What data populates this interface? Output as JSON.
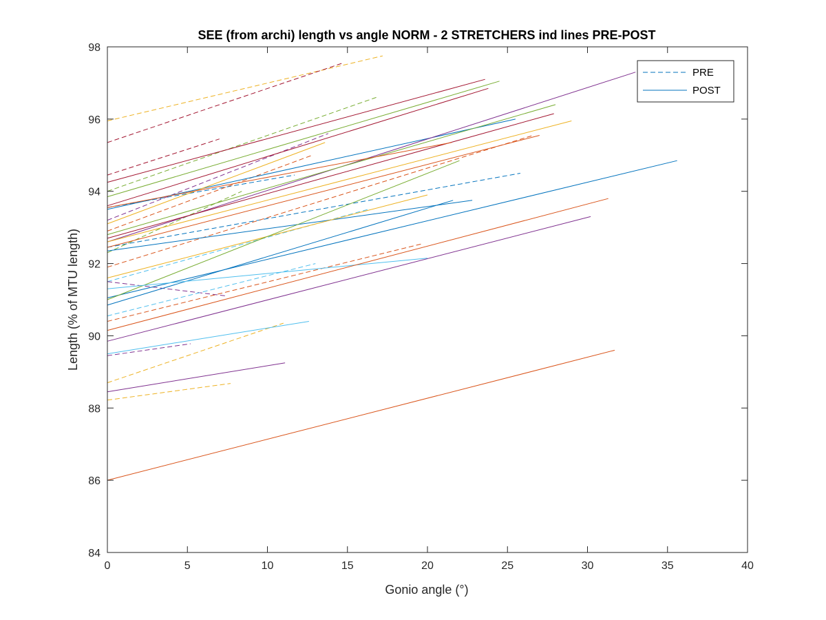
{
  "chart_data": {
    "type": "line",
    "title": "SEE (from archi) length vs angle NORM - 2 STRETCHERS ind lines PRE-POST",
    "xlabel": "Gonio angle (°)",
    "ylabel": "Length (% of MTU length)",
    "xlim": [
      0,
      40
    ],
    "ylim": [
      84,
      98
    ],
    "xticks": [
      "0",
      "5",
      "10",
      "15",
      "20",
      "25",
      "30",
      "35",
      "40"
    ],
    "yticks": [
      "84",
      "86",
      "88",
      "90",
      "92",
      "94",
      "96",
      "98"
    ],
    "grid": false,
    "legend": {
      "placement": "top-right",
      "entries": [
        {
          "label": "PRE",
          "style": "dashed",
          "color": "#0072BD"
        },
        {
          "label": "POST",
          "style": "solid",
          "color": "#0072BD"
        }
      ]
    },
    "series": [
      {
        "condition": "PRE",
        "color": "#EDB120",
        "x": [
          0,
          17.2
        ],
        "y": [
          95.95,
          97.75
        ]
      },
      {
        "condition": "PRE",
        "color": "#A2142F",
        "x": [
          0,
          14.7
        ],
        "y": [
          95.35,
          97.55
        ]
      },
      {
        "condition": "PRE",
        "color": "#77AC30",
        "x": [
          0,
          16.8
        ],
        "y": [
          94.0,
          96.6
        ]
      },
      {
        "condition": "PRE",
        "color": "#A2142F",
        "x": [
          0,
          7.0
        ],
        "y": [
          94.45,
          95.45
        ]
      },
      {
        "condition": "PRE",
        "color": "#0072BD",
        "x": [
          0,
          11.7
        ],
        "y": [
          93.55,
          94.45
        ]
      },
      {
        "condition": "PRE",
        "color": "#7E2F8E",
        "x": [
          0,
          13.8
        ],
        "y": [
          93.2,
          95.6
        ]
      },
      {
        "condition": "PRE",
        "color": "#D95319",
        "x": [
          0,
          12.8
        ],
        "y": [
          92.9,
          95.0
        ]
      },
      {
        "condition": "PRE",
        "color": "#0072BD",
        "x": [
          0,
          25.8
        ],
        "y": [
          92.45,
          94.5
        ]
      },
      {
        "condition": "PRE",
        "color": "#4DBEEE",
        "x": [
          0,
          16.3
        ],
        "y": [
          91.5,
          93.5
        ]
      },
      {
        "condition": "PRE",
        "color": "#77AC30",
        "x": [
          0,
          8.4
        ],
        "y": [
          92.3,
          94.0
        ]
      },
      {
        "condition": "PRE",
        "color": "#D95319",
        "x": [
          0,
          26.6
        ],
        "y": [
          91.9,
          95.55
        ]
      },
      {
        "condition": "PRE",
        "color": "#7E2F8E",
        "x": [
          0,
          7.5
        ],
        "y": [
          91.5,
          91.1
        ]
      },
      {
        "condition": "PRE",
        "color": "#4DBEEE",
        "x": [
          0,
          13.0
        ],
        "y": [
          90.55,
          92.0
        ]
      },
      {
        "condition": "PRE",
        "color": "#D95319",
        "x": [
          0,
          19.7
        ],
        "y": [
          90.4,
          92.55
        ]
      },
      {
        "condition": "PRE",
        "color": "#7E2F8E",
        "x": [
          0,
          5.2
        ],
        "y": [
          89.45,
          89.78
        ]
      },
      {
        "condition": "PRE",
        "color": "#EDB120",
        "x": [
          0,
          11.0
        ],
        "y": [
          88.7,
          90.35
        ]
      },
      {
        "condition": "PRE",
        "color": "#EDB120",
        "x": [
          0,
          7.7
        ],
        "y": [
          88.22,
          88.68
        ]
      },
      {
        "condition": "POST",
        "color": "#A2142F",
        "x": [
          0,
          23.6
        ],
        "y": [
          94.25,
          97.1
        ]
      },
      {
        "condition": "POST",
        "color": "#77AC30",
        "x": [
          0,
          24.5
        ],
        "y": [
          93.85,
          97.05
        ]
      },
      {
        "condition": "POST",
        "color": "#A2142F",
        "x": [
          0,
          23.8
        ],
        "y": [
          93.6,
          96.85
        ]
      },
      {
        "condition": "POST",
        "color": "#0072BD",
        "x": [
          0,
          25.5
        ],
        "y": [
          93.5,
          96.0
        ]
      },
      {
        "condition": "POST",
        "color": "#7E2F8E",
        "x": [
          0,
          33.0
        ],
        "y": [
          92.6,
          97.3
        ]
      },
      {
        "condition": "POST",
        "color": "#77AC30",
        "x": [
          0,
          28.0
        ],
        "y": [
          92.8,
          96.4
        ]
      },
      {
        "condition": "POST",
        "color": "#A2142F",
        "x": [
          0,
          27.9
        ],
        "y": [
          92.7,
          96.15
        ]
      },
      {
        "condition": "POST",
        "color": "#D95319",
        "x": [
          0,
          27.0
        ],
        "y": [
          92.45,
          95.55
        ]
      },
      {
        "condition": "POST",
        "color": "#EDB120",
        "x": [
          0,
          29.0
        ],
        "y": [
          92.6,
          95.95
        ]
      },
      {
        "condition": "POST",
        "color": "#EDB120",
        "x": [
          0,
          13.6
        ],
        "y": [
          93.1,
          95.35
        ]
      },
      {
        "condition": "POST",
        "color": "#D95319",
        "x": [
          0,
          21.5
        ],
        "y": [
          93.55,
          95.35
        ]
      },
      {
        "condition": "POST",
        "color": "#0072BD",
        "x": [
          0,
          22.8
        ],
        "y": [
          92.35,
          93.75
        ]
      },
      {
        "condition": "POST",
        "color": "#EDB120",
        "x": [
          0,
          20.0
        ],
        "y": [
          91.6,
          93.9
        ]
      },
      {
        "condition": "POST",
        "color": "#0072BD",
        "x": [
          0,
          35.6
        ],
        "y": [
          91.05,
          94.85
        ]
      },
      {
        "condition": "POST",
        "color": "#77AC30",
        "x": [
          0,
          22.0
        ],
        "y": [
          91.0,
          94.85
        ]
      },
      {
        "condition": "POST",
        "color": "#0072BD",
        "x": [
          0,
          21.6
        ],
        "y": [
          90.85,
          93.75
        ]
      },
      {
        "condition": "POST",
        "color": "#4DBEEE",
        "x": [
          0,
          20.0
        ],
        "y": [
          91.3,
          92.15
        ]
      },
      {
        "condition": "POST",
        "color": "#D95319",
        "x": [
          0,
          31.3
        ],
        "y": [
          90.15,
          93.8
        ]
      },
      {
        "condition": "POST",
        "color": "#7E2F8E",
        "x": [
          0,
          30.2
        ],
        "y": [
          89.85,
          93.3
        ]
      },
      {
        "condition": "POST",
        "color": "#4DBEEE",
        "x": [
          0,
          12.6
        ],
        "y": [
          89.5,
          90.4
        ]
      },
      {
        "condition": "POST",
        "color": "#7E2F8E",
        "x": [
          0,
          11.1
        ],
        "y": [
          88.45,
          89.25
        ]
      },
      {
        "condition": "POST",
        "color": "#D95319",
        "x": [
          0,
          31.7
        ],
        "y": [
          86.0,
          89.6
        ]
      }
    ]
  }
}
